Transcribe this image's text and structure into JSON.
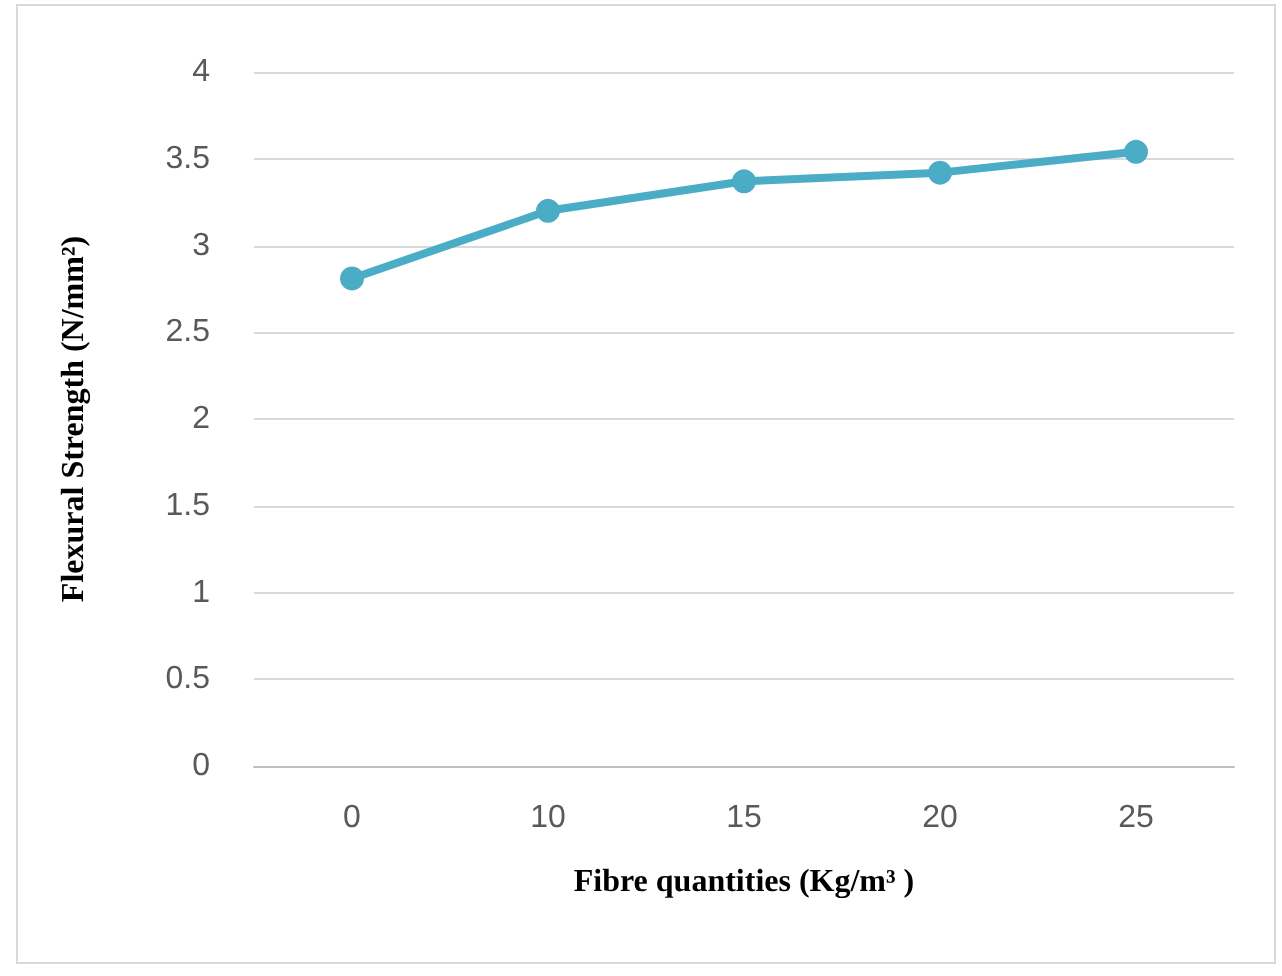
{
  "chart_data": {
    "type": "line",
    "xlabel": "Fibre quantities (Kg/m³ )",
    "ylabel": "Flexural Strength (N/mm²)",
    "categories": [
      "0",
      "10",
      "15",
      "20",
      "25"
    ],
    "series": [
      {
        "color": "#4bacc6",
        "values": [
          2.81,
          3.2,
          3.37,
          3.42,
          3.54
        ]
      }
    ],
    "ylim": [
      0,
      4
    ],
    "yticks": [
      0,
      0.5,
      1,
      1.5,
      2,
      2.5,
      3,
      3.5,
      4
    ],
    "grid": "y",
    "marker": "circle",
    "line_style": "solid"
  }
}
